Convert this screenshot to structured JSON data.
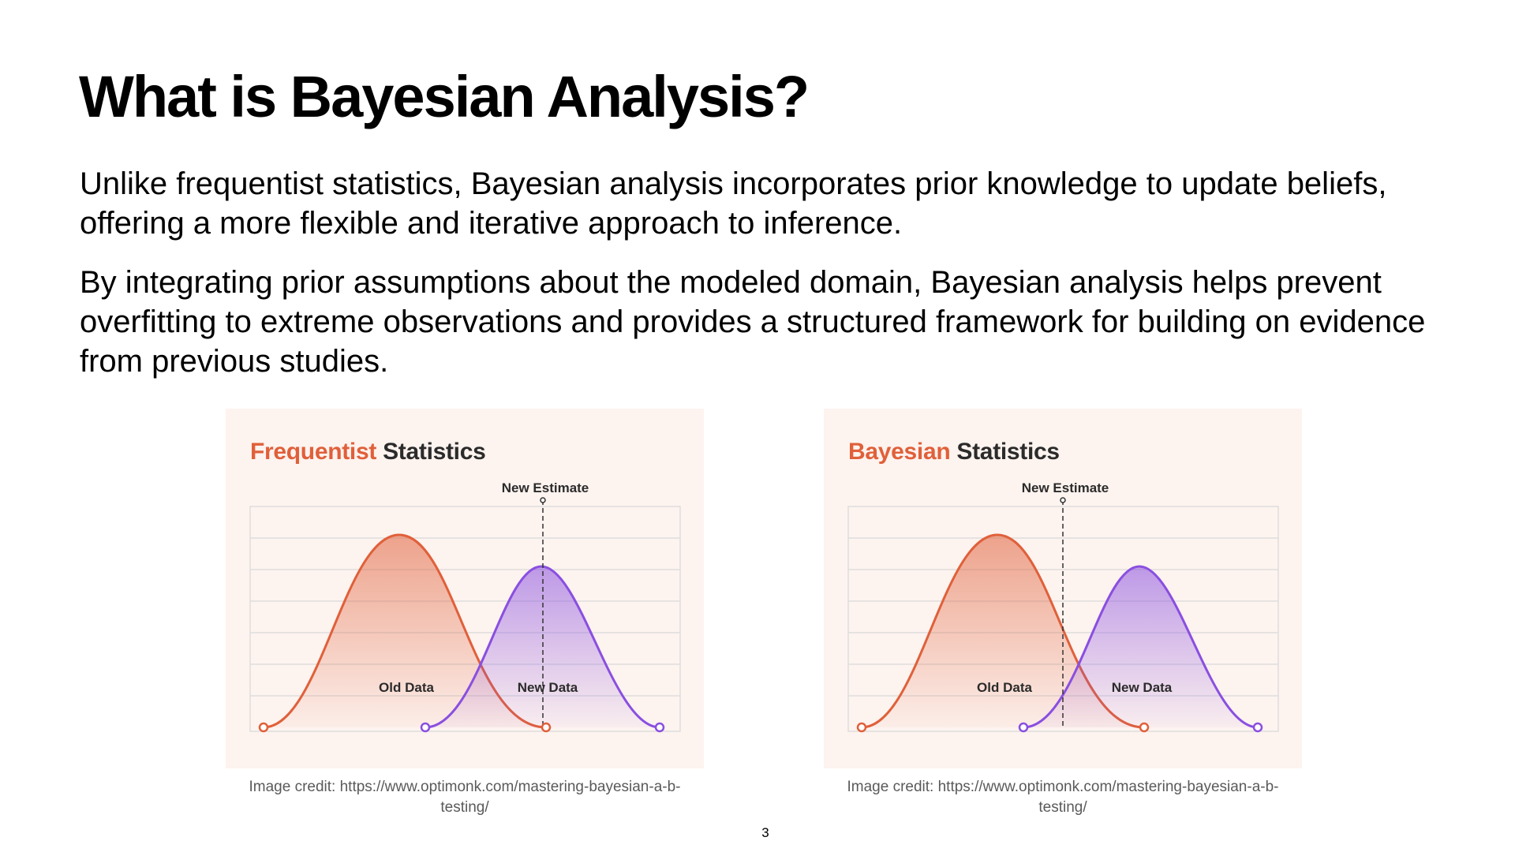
{
  "slide": {
    "title": "What is Bayesian Analysis?",
    "paragraph_1": "Unlike frequentist statistics, Bayesian analysis incorporates prior knowledge to update beliefs, offering a more flexible and iterative approach to inference.",
    "paragraph_2": "By integrating prior assumptions about the modeled domain, Bayesian analysis helps prevent overfitting to extreme observations and provides a structured framework for building on evidence from previous studies.",
    "page_number": "3"
  },
  "figures": [
    {
      "title_accent": "Frequentist",
      "title_rest": "Statistics",
      "estimate_label": "New Estimate",
      "old_label": "Old Data",
      "new_label": "New Data",
      "credit": "Image credit: https://www.optimonk.com/mastering-bayesian-a-b-testing/"
    },
    {
      "title_accent": "Bayesian",
      "title_rest": "Statistics",
      "estimate_label": "New Estimate",
      "old_label": "Old Data",
      "new_label": "New Data",
      "credit": "Image credit: https://www.optimonk.com/mastering-bayesian-a-b-testing/"
    }
  ],
  "colors": {
    "old_data": "#e0603a",
    "new_data": "#8a4fe0",
    "panel_background": "#fdf3ef",
    "grid": "#dedede"
  }
}
